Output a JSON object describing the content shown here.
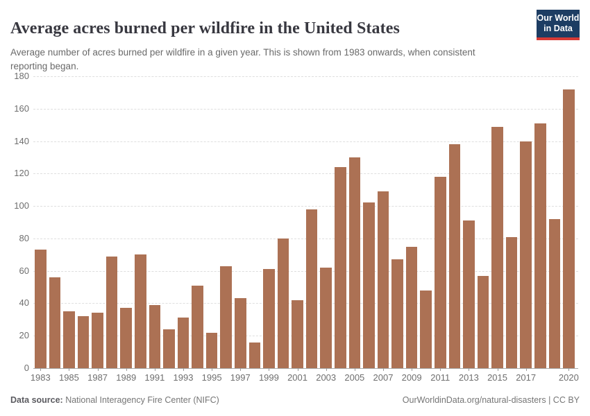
{
  "header": {
    "title": "Average acres burned per wildfire in the United States",
    "subtitle": "Average number of acres burned per wildfire in a given year. This is shown from 1983 onwards, when consistent reporting began.",
    "logo": {
      "line1": "Our World",
      "line2": "in Data",
      "bg_color": "#1d3d63",
      "stripe_color": "#d73a35"
    }
  },
  "chart_data": {
    "type": "bar",
    "title": "Average acres burned per wildfire in the United States",
    "subtitle": "Average number of acres burned per wildfire in a given year. This is shown from 1983 onwards, when consistent reporting began.",
    "xlabel": "",
    "ylabel": "",
    "ylim": [
      0,
      180
    ],
    "y_ticks": [
      0,
      20,
      40,
      60,
      80,
      100,
      120,
      140,
      160,
      180
    ],
    "x_tick_labels": [
      "1983",
      "1985",
      "1987",
      "1989",
      "1991",
      "1993",
      "1995",
      "1997",
      "1999",
      "2001",
      "2003",
      "2005",
      "2007",
      "2009",
      "2011",
      "2013",
      "2015",
      "2017",
      "2020"
    ],
    "grid": "horizontal-dashed",
    "legend": "none",
    "bar_color": "#ac7154",
    "categories": [
      1983,
      1984,
      1985,
      1986,
      1987,
      1988,
      1989,
      1990,
      1991,
      1992,
      1993,
      1994,
      1995,
      1996,
      1997,
      1998,
      1999,
      2000,
      2001,
      2002,
      2003,
      2004,
      2005,
      2006,
      2007,
      2008,
      2009,
      2010,
      2011,
      2012,
      2013,
      2014,
      2015,
      2016,
      2017,
      2018,
      2019,
      2020
    ],
    "values": [
      73,
      56,
      35,
      32,
      34,
      69,
      37,
      70,
      39,
      24,
      31,
      51,
      22,
      63,
      43,
      16,
      61,
      80,
      42,
      98,
      62,
      124,
      130,
      102,
      109,
      67,
      75,
      48,
      118,
      138,
      91,
      57,
      149,
      81,
      140,
      151,
      92,
      172
    ]
  },
  "footer": {
    "datasource_label": "Data source:",
    "datasource_value": " National Interagency Fire Center (NIFC)",
    "attribution": "OurWorldinData.org/natural-disasters | CC BY"
  }
}
